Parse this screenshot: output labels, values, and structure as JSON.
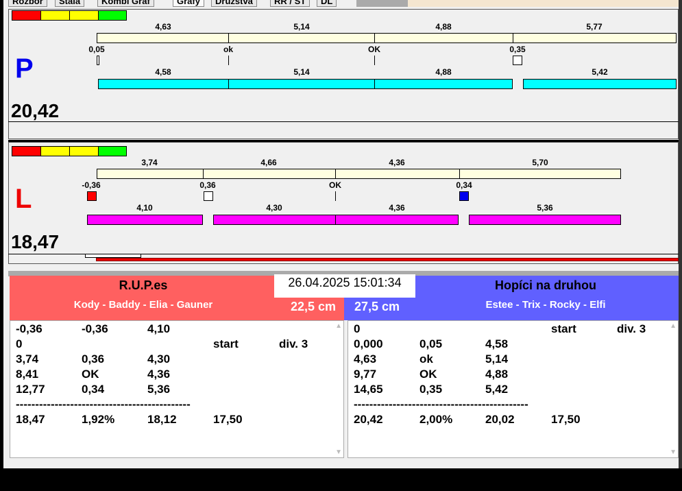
{
  "tabs": [
    "Rozbor",
    "Stala",
    "Kombi Graf",
    "Grafy",
    "Družstva",
    "RR / ST",
    "DL"
  ],
  "colors": {
    "red": "#ff0000",
    "yellow": "#ffff00",
    "green": "#00ff00",
    "cream": "#ffffe0",
    "cyan": "#00ffff",
    "magenta": "#ff00ff",
    "team_left": "#ff6060",
    "team_right": "#6060ff"
  },
  "right_lane": {
    "letter": "P",
    "total": "20,42",
    "top_labels": [
      "4,63",
      "5,14",
      "4,88",
      "5,77"
    ],
    "mid_labels": [
      "0,05",
      "ok",
      "OK",
      "0,35"
    ],
    "bottom_labels": [
      "4,58",
      "5,14",
      "4,88",
      "5,42"
    ]
  },
  "left_lane": {
    "letter": "L",
    "total": "18,47",
    "top_labels": [
      "3,74",
      "4,66",
      "4,36",
      "5,70"
    ],
    "mid_labels": [
      "-0,36",
      "0,36",
      "OK",
      "0,34"
    ],
    "bottom_labels": [
      "4,10",
      "4,30",
      "4,36",
      "5,36"
    ]
  },
  "datetime": "26.04.2025 15:01:34",
  "team_left": {
    "name": "R.U.P.es",
    "members": "Kody - Baddy - Elia - Gauner",
    "height": "22,5 cm",
    "rows": [
      [
        "-0,36",
        "-0,36",
        "4,10",
        "",
        ""
      ],
      [
        "0",
        "",
        "",
        "start",
        "div. 3"
      ],
      [
        "3,74",
        "0,36",
        "4,30",
        "",
        ""
      ],
      [
        "8,41",
        "OK",
        "4,36",
        "",
        ""
      ],
      [
        "12,77",
        "0,34",
        "5,36",
        "",
        ""
      ],
      [
        "---------------------------------------------",
        "",
        "",
        "",
        ""
      ],
      [
        "18,47",
        "1,92%",
        "18,12",
        "17,50",
        ""
      ]
    ]
  },
  "team_right": {
    "name": "Hopíci na druhou",
    "members": "Estee - Trix - Rocky - Elfi",
    "height": "27,5 cm",
    "rows": [
      [
        "0",
        "",
        "",
        "start",
        "div. 3"
      ],
      [
        "0,000",
        "0,05",
        "4,58",
        "",
        ""
      ],
      [
        "4,63",
        "ok",
        "5,14",
        "",
        ""
      ],
      [
        "9,77",
        "OK",
        "4,88",
        "",
        ""
      ],
      [
        "14,65",
        "0,35",
        "5,42",
        "",
        ""
      ],
      [
        "---------------------------------------------",
        "",
        "",
        "",
        ""
      ],
      [
        "20,42",
        "2,00%",
        "20,02",
        "17,50",
        ""
      ]
    ]
  }
}
